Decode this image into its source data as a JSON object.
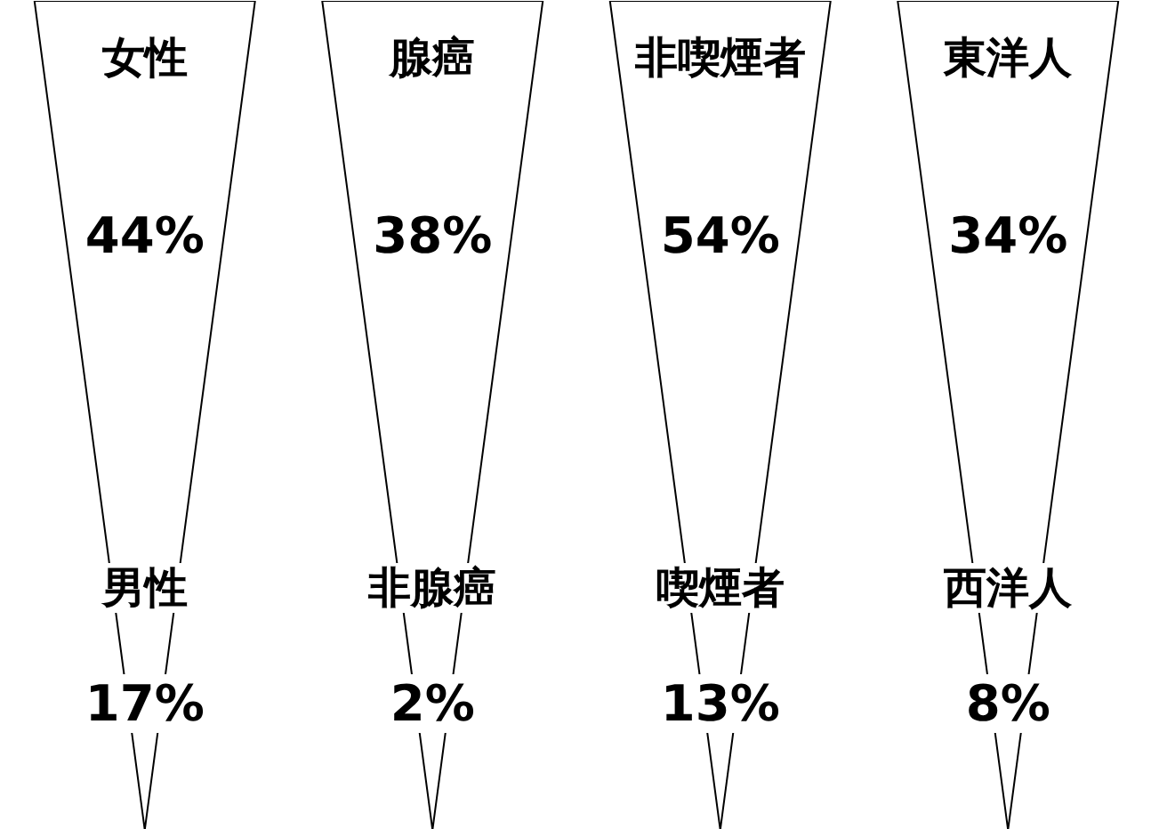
{
  "chart_data": {
    "type": "other",
    "categories": [
      "女性",
      "男性",
      "腺癌",
      "非腺癌",
      "非喫煙者",
      "喫煙者",
      "東洋人",
      "西洋人"
    ],
    "values": [
      44,
      17,
      38,
      2,
      54,
      13,
      34,
      8
    ],
    "value_labels": [
      "44%",
      "17%",
      "38%",
      "2%",
      "54%",
      "13%",
      "34%",
      "8%"
    ]
  }
}
